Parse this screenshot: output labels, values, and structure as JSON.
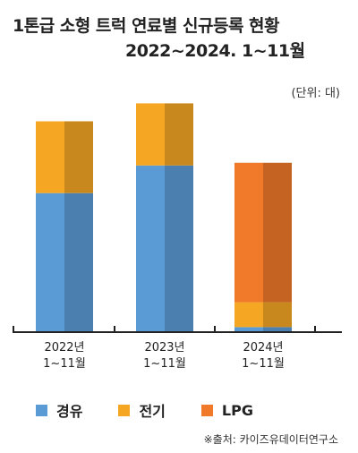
{
  "header": {
    "title": "1톤급 소형 트럭 연료별 신규등록 현황",
    "subtitle": "2022~2024. 1~11월",
    "unit": "(단위: 대)"
  },
  "legend": {
    "items": [
      {
        "label": "경유",
        "color": "#5b9bd5"
      },
      {
        "label": "전기",
        "color": "#f5a623"
      },
      {
        "label": "LPG",
        "color": "#f07a2a"
      }
    ]
  },
  "source": "※출처: 카이즈유데이터연구소",
  "chart_data": {
    "type": "bar",
    "stacked": true,
    "categories": [
      "2022년\n1~11월",
      "2023년\n1~11월",
      "2024년\n1~11월"
    ],
    "series": [
      {
        "name": "경유",
        "color": "#5b9bd5",
        "values": [
          100,
          120,
          3
        ]
      },
      {
        "name": "전기",
        "color": "#f5a623",
        "values": [
          52,
          45,
          18
        ]
      },
      {
        "name": "LPG",
        "color": "#f07a2a",
        "values": [
          0,
          0,
          101
        ]
      }
    ],
    "ylim": [
      0,
      175
    ],
    "grid": false,
    "legend_position": "bottom"
  }
}
